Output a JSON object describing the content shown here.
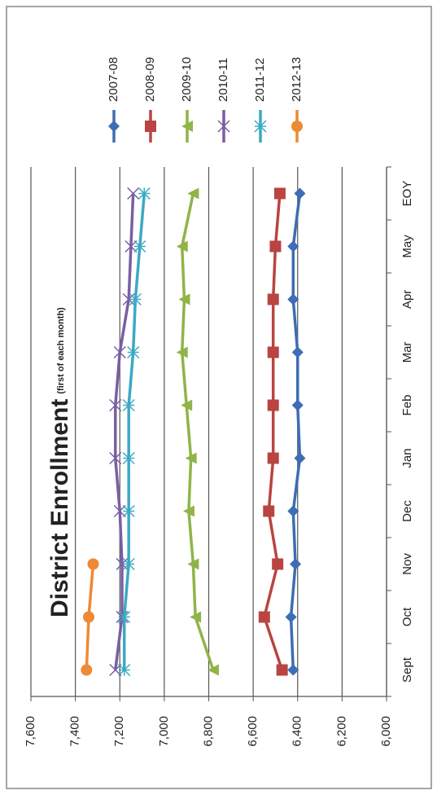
{
  "chart_data": {
    "type": "line",
    "title": "District Enrollment",
    "subtitle": "(first of each month)",
    "categories": [
      "Sept",
      "Oct",
      "Nov",
      "Dec",
      "Jan",
      "Feb",
      "Mar",
      "Apr",
      "May",
      "EOY"
    ],
    "series": [
      {
        "name": "2007-08",
        "color": "#3d6db5",
        "marker": "diamond",
        "values": [
          6420,
          6430,
          6410,
          6420,
          6390,
          6400,
          6400,
          6420,
          6420,
          6390
        ]
      },
      {
        "name": "2008-09",
        "color": "#b94441",
        "marker": "square",
        "values": [
          6470,
          6550,
          6490,
          6530,
          6510,
          6510,
          6510,
          6510,
          6500,
          6480
        ]
      },
      {
        "name": "2009-10",
        "color": "#8fb448",
        "marker": "triangle",
        "values": [
          6780,
          6860,
          6870,
          6890,
          6880,
          6900,
          6920,
          6910,
          6920,
          6870
        ]
      },
      {
        "name": "2010-11",
        "color": "#7a5ea2",
        "marker": "x",
        "values": [
          7220,
          7190,
          7190,
          7200,
          7220,
          7220,
          7200,
          7160,
          7150,
          7140
        ]
      },
      {
        "name": "2011-12",
        "color": "#3ba9c4",
        "marker": "star",
        "values": [
          7180,
          7180,
          7160,
          7160,
          7160,
          7160,
          7140,
          7130,
          7110,
          7090
        ]
      },
      {
        "name": "2012-13",
        "color": "#ee8a34",
        "marker": "circle",
        "values": [
          7350,
          7340,
          7320,
          null,
          null,
          null,
          null,
          null,
          null,
          null
        ]
      }
    ],
    "ylim": [
      6000,
      7600
    ],
    "yticks": [
      {
        "value": 6000,
        "label": "6,000"
      },
      {
        "value": 6200,
        "label": "6,200"
      },
      {
        "value": 6400,
        "label": "6,400"
      },
      {
        "value": 6600,
        "label": "6,600"
      },
      {
        "value": 6800,
        "label": "6,800"
      },
      {
        "value": 7000,
        "label": "7,000"
      },
      {
        "value": 7200,
        "label": "7,200"
      },
      {
        "value": 7400,
        "label": "7,400"
      },
      {
        "value": 7600,
        "label": "7,600"
      }
    ],
    "grid": true,
    "legend": "right",
    "rotation": -90
  }
}
